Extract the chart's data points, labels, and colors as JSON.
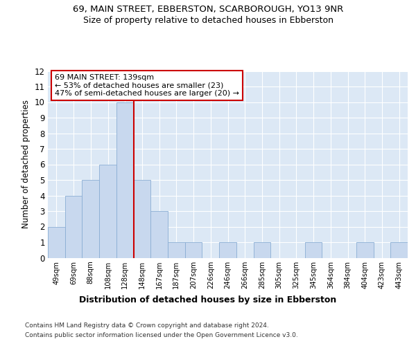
{
  "title1": "69, MAIN STREET, EBBERSTON, SCARBOROUGH, YO13 9NR",
  "title2": "Size of property relative to detached houses in Ebberston",
  "xlabel": "Distribution of detached houses by size in Ebberston",
  "ylabel": "Number of detached properties",
  "categories": [
    "49sqm",
    "69sqm",
    "88sqm",
    "108sqm",
    "128sqm",
    "148sqm",
    "167sqm",
    "187sqm",
    "207sqm",
    "226sqm",
    "246sqm",
    "266sqm",
    "285sqm",
    "305sqm",
    "325sqm",
    "345sqm",
    "364sqm",
    "384sqm",
    "404sqm",
    "423sqm",
    "443sqm"
  ],
  "values": [
    2,
    4,
    5,
    6,
    10,
    5,
    3,
    1,
    1,
    0,
    1,
    0,
    1,
    0,
    0,
    1,
    0,
    0,
    1,
    0,
    1
  ],
  "bar_color": "#c8d8ee",
  "bar_edge_color": "#8aadd4",
  "reference_line_x": 4.5,
  "reference_line_color": "#cc0000",
  "annotation_title": "69 MAIN STREET: 139sqm",
  "annotation_line1": "← 53% of detached houses are smaller (23)",
  "annotation_line2": "47% of semi-detached houses are larger (20) →",
  "annotation_box_color": "#cc0000",
  "ylim": [
    0,
    12
  ],
  "yticks": [
    0,
    1,
    2,
    3,
    4,
    5,
    6,
    7,
    8,
    9,
    10,
    11,
    12
  ],
  "footer1": "Contains HM Land Registry data © Crown copyright and database right 2024.",
  "footer2": "Contains public sector information licensed under the Open Government Licence v3.0.",
  "bg_color": "#ffffff",
  "plot_bg_color": "#dce8f5"
}
